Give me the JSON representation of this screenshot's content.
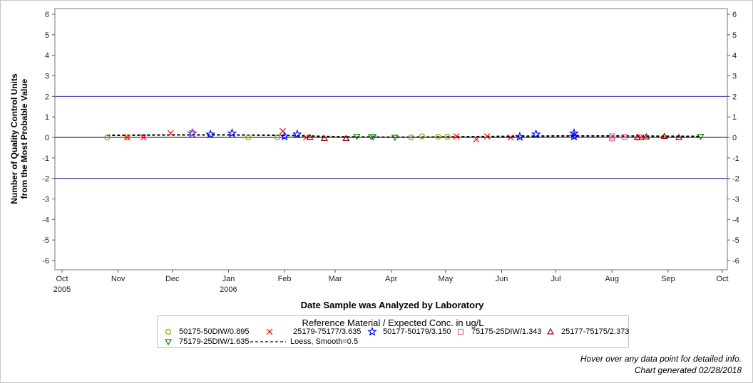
{
  "chart_data": {
    "type": "scatter",
    "xlabel": "Date Sample was Analyzed by Laboratory",
    "ylabel_lines": [
      "Number of Quality Control Units",
      "from the Most Probable Value"
    ],
    "ylim": [
      -6,
      6
    ],
    "yticks": [
      -6,
      -5,
      -4,
      -3,
      -2,
      -1,
      0,
      1,
      2,
      3,
      4,
      5,
      6
    ],
    "xlim": [
      "2005-10-01",
      "2006-10-01"
    ],
    "xticks": [
      {
        "date": "2005-10-01",
        "label": "Oct",
        "year": "2005"
      },
      {
        "date": "2005-11-01",
        "label": "Nov",
        "year": ""
      },
      {
        "date": "2005-12-01",
        "label": "Dec",
        "year": ""
      },
      {
        "date": "2006-01-01",
        "label": "Jan",
        "year": "2006"
      },
      {
        "date": "2006-02-01",
        "label": "Feb",
        "year": ""
      },
      {
        "date": "2006-03-01",
        "label": "Mar",
        "year": ""
      },
      {
        "date": "2006-04-01",
        "label": "Apr",
        "year": ""
      },
      {
        "date": "2006-05-01",
        "label": "May",
        "year": ""
      },
      {
        "date": "2006-06-01",
        "label": "Jun",
        "year": ""
      },
      {
        "date": "2006-07-01",
        "label": "Jul",
        "year": ""
      },
      {
        "date": "2006-08-01",
        "label": "Aug",
        "year": ""
      },
      {
        "date": "2006-09-01",
        "label": "Sep",
        "year": ""
      },
      {
        "date": "2006-10-01",
        "label": "Oct",
        "year": ""
      }
    ],
    "reference_lines": [
      2,
      -2,
      0
    ],
    "legend_title": "Reference Material / Expected Conc. in ug/L",
    "series": [
      {
        "name": "50175-50DIW/0.895",
        "marker": "circle",
        "color": "#9a9a00",
        "points": [
          [
            "2005-10-26",
            0.0
          ],
          [
            "2005-11-06",
            0.0
          ],
          [
            "2006-01-12",
            0.0
          ],
          [
            "2006-01-28",
            0.0
          ],
          [
            "2006-04-12",
            0.0
          ],
          [
            "2006-04-18",
            0.05
          ],
          [
            "2006-04-27",
            0.03
          ],
          [
            "2006-05-02",
            0.03
          ]
        ]
      },
      {
        "name": "25179-75177/3.635",
        "marker": "x",
        "color": "#ff0000",
        "points": [
          [
            "2005-11-06",
            0.0
          ],
          [
            "2005-11-15",
            0.0
          ],
          [
            "2005-11-30",
            0.2
          ],
          [
            "2006-01-31",
            0.3
          ],
          [
            "2006-02-13",
            0.0
          ],
          [
            "2006-05-07",
            0.05
          ],
          [
            "2006-05-18",
            -0.1
          ],
          [
            "2006-05-24",
            0.05
          ],
          [
            "2006-06-06",
            0.0
          ],
          [
            "2006-08-17",
            0.0
          ]
        ]
      },
      {
        "name": "50177-50179/3.150",
        "marker": "star",
        "color": "#0000ff",
        "points": [
          [
            "2005-12-12",
            0.2
          ],
          [
            "2005-12-22",
            0.15
          ],
          [
            "2006-01-03",
            0.2
          ],
          [
            "2006-02-01",
            0.05
          ],
          [
            "2006-02-08",
            0.15
          ],
          [
            "2006-06-11",
            0.03
          ],
          [
            "2006-06-20",
            0.15
          ],
          [
            "2006-07-11",
            0.2
          ],
          [
            "2006-07-11",
            0.05
          ]
        ]
      },
      {
        "name": "75175-25DIW/1.343",
        "marker": "square",
        "color": "#e060a0",
        "points": [
          [
            "2005-12-12",
            0.2
          ],
          [
            "2006-08-01",
            -0.05
          ],
          [
            "2006-08-01",
            0.05
          ],
          [
            "2006-08-08",
            0.03
          ],
          [
            "2006-08-16",
            0.0
          ]
        ]
      },
      {
        "name": "25177-75175/2.373",
        "marker": "triangle",
        "color": "#990000",
        "points": [
          [
            "2006-02-15",
            0.0
          ],
          [
            "2006-02-23",
            -0.05
          ],
          [
            "2006-03-07",
            -0.05
          ],
          [
            "2006-08-15",
            0.0
          ],
          [
            "2006-08-20",
            0.03
          ],
          [
            "2006-08-30",
            0.05
          ],
          [
            "2006-09-07",
            0.0
          ]
        ]
      },
      {
        "name": "75179-25DIW/1.635",
        "marker": "triangle-down",
        "color": "#008000",
        "points": [
          [
            "2006-03-13",
            0.05
          ],
          [
            "2006-03-21",
            0.03
          ],
          [
            "2006-03-22",
            0.03
          ],
          [
            "2006-04-03",
            0.0
          ],
          [
            "2006-09-19",
            0.05
          ]
        ]
      }
    ],
    "loess": {
      "name": "Loess, Smooth=0.5",
      "color": "#000000",
      "points": [
        [
          "2005-10-26",
          0.1
        ],
        [
          "2005-12-01",
          0.12
        ],
        [
          "2006-01-01",
          0.12
        ],
        [
          "2006-02-01",
          0.1
        ],
        [
          "2006-03-01",
          0.03
        ],
        [
          "2006-04-01",
          0.01
        ],
        [
          "2006-05-01",
          0.02
        ],
        [
          "2006-06-01",
          0.05
        ],
        [
          "2006-07-01",
          0.07
        ],
        [
          "2006-08-01",
          0.07
        ],
        [
          "2006-09-19",
          0.05
        ]
      ]
    }
  },
  "footer": {
    "line1": "Hover over any data point for detailed info.",
    "line2": "Chart generated 02/28/2018"
  }
}
